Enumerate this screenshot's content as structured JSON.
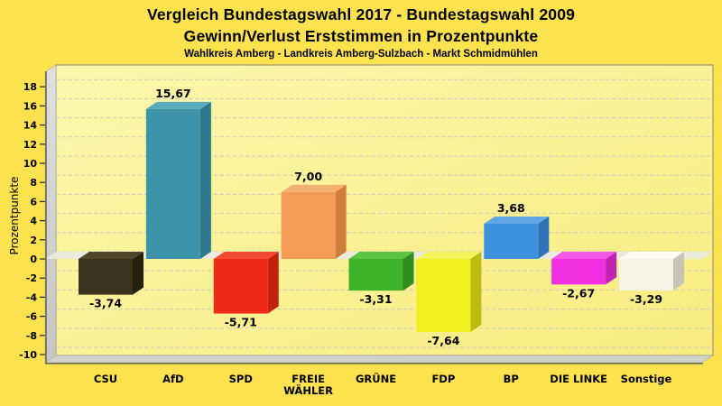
{
  "title": {
    "line1": "Vergleich Bundestagswahl 2017 - Bundestagswahl 2009",
    "line2": "Gewinn/Verlust Erststimmen in Prozentpunkte",
    "subtitle": "Wahlkreis Amberg - Landkreis Amberg-Sulzbach - Markt Schmidmühlen"
  },
  "chart_data": {
    "type": "bar",
    "style": "3d-column",
    "title": "Vergleich Bundestagswahl 2017 - Bundestagswahl 2009 / Gewinn/Verlust Erststimmen in Prozentpunkte",
    "subtitle": "Wahlkreis Amberg - Landkreis Amberg-Sulzbach - Markt Schmidmühlen",
    "xlabel": "",
    "ylabel": "Prozentpunkte",
    "ylim": [
      -10,
      18
    ],
    "ytick_step": 2,
    "grid": "horizontal-dashed",
    "legend": "none",
    "categories": [
      "CSU",
      "AfD",
      "SPD",
      "FREIE WÄHLER",
      "GRÜNE",
      "FDP",
      "BP",
      "DIE LINKE",
      "Sonstige"
    ],
    "category_label_lines": [
      [
        "CSU"
      ],
      [
        "AfD"
      ],
      [
        "SPD"
      ],
      [
        "FREIE",
        "WÄHLER"
      ],
      [
        "GRÜNE"
      ],
      [
        "FDP"
      ],
      [
        "BP"
      ],
      [
        "DIE LINKE"
      ],
      [
        "Sonstige"
      ]
    ],
    "values": [
      -3.74,
      15.67,
      -5.71,
      7.0,
      -3.31,
      -7.64,
      3.68,
      -2.67,
      -3.29
    ],
    "value_labels": [
      "-3,74",
      "15,67",
      "-5,71",
      "7,00",
      "-3,31",
      "-7,64",
      "3,68",
      "-2,67",
      "-3,29"
    ],
    "bar_colors": [
      {
        "name": "CSU",
        "front": "#3A341F",
        "side": "#262111",
        "top": "#4E4629"
      },
      {
        "name": "AfD",
        "front": "#3D94AA",
        "side": "#2E798E",
        "top": "#58A9BC"
      },
      {
        "name": "SPD",
        "front": "#EF2A17",
        "side": "#C22310",
        "top": "#F14A30"
      },
      {
        "name": "FREIE WÄHLER",
        "front": "#F49C57",
        "side": "#CE7E39",
        "top": "#F6B172"
      },
      {
        "name": "GRÜNE",
        "front": "#3DB32A",
        "side": "#2F8E1D",
        "top": "#58C441"
      },
      {
        "name": "FDP",
        "front": "#F2F01F",
        "side": "#BDBB12",
        "top": "#F6F45C"
      },
      {
        "name": "BP",
        "front": "#3D92DC",
        "side": "#2F73B8",
        "top": "#60A7E6"
      },
      {
        "name": "DIE LINKE",
        "front": "#F02FE2",
        "side": "#C022B4",
        "top": "#F458E9"
      },
      {
        "name": "Sonstige",
        "front": "#F6F3E9",
        "side": "#C7C3B5",
        "top": "#FDFBF4"
      }
    ],
    "colors": {
      "page_bg": "#FBE24E",
      "plot_bg_light": "#FDF6AC",
      "plot_bg_dark": "#F8EC80",
      "grid_line": "#C9C9C9",
      "wall_light": "#DFDFDF",
      "wall_dark": "#C6C6C6",
      "floor": "#D2D2CC",
      "zero_band": "#EAEADF",
      "axis_line": "#6A6A4A",
      "plot_border": "#9A9A70",
      "text": "#000000"
    }
  }
}
